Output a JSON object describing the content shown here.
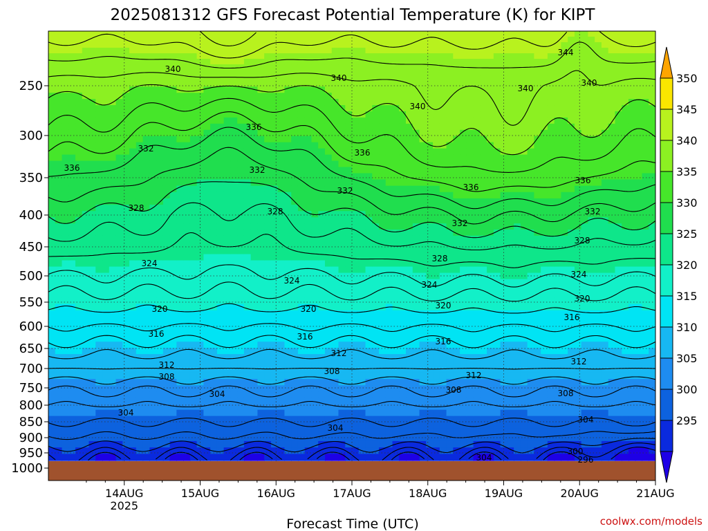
{
  "chart_data": {
    "type": "heatmap",
    "title": "2025081312 GFS Forecast Potential Temperature (K) for KIPT",
    "xlabel": "Forecast Time (UTC)",
    "ylabel": "",
    "credit": "coolwx.com/models",
    "x_tick_labels": [
      "14AUG",
      "15AUG",
      "16AUG",
      "17AUG",
      "18AUG",
      "19AUG",
      "20AUG",
      "21AUG"
    ],
    "x_tick_year": "2025",
    "xlim_hours": [
      -12,
      180
    ],
    "y_scale": "pressure (log), inverted",
    "y_tick_labels": [
      "250",
      "300",
      "350",
      "400",
      "450",
      "500",
      "550",
      "600",
      "650",
      "700",
      "750",
      "800",
      "850",
      "900",
      "950",
      "1000"
    ],
    "ylim_hpa": [
      200,
      1000
    ],
    "surface_pressure_hpa": 970,
    "colorbar": {
      "labels": [
        "295",
        "300",
        "305",
        "310",
        "315",
        "320",
        "325",
        "330",
        "335",
        "340",
        "345",
        "350"
      ],
      "levels": [
        290,
        295,
        300,
        305,
        310,
        315,
        320,
        325,
        330,
        335,
        340,
        345,
        350,
        355
      ],
      "colors": [
        "#1e00e6",
        "#0a2ade",
        "#0d62de",
        "#1e8cf0",
        "#17b8f2",
        "#00e4f4",
        "#12f0c8",
        "#0ee68a",
        "#20de4e",
        "#46e62a",
        "#8cf022",
        "#b8f21e",
        "#fae600",
        "#ffa500"
      ]
    },
    "contour_interval_k": 2,
    "contour_labels": [
      {
        "text": "340"
      },
      {
        "text": "340"
      },
      {
        "text": "344"
      },
      {
        "text": "340"
      },
      {
        "text": "340"
      },
      {
        "text": "340"
      },
      {
        "text": "336"
      },
      {
        "text": "336"
      },
      {
        "text": "336"
      },
      {
        "text": "336"
      },
      {
        "text": "336"
      },
      {
        "text": "332"
      },
      {
        "text": "332"
      },
      {
        "text": "332"
      },
      {
        "text": "332"
      },
      {
        "text": "332"
      },
      {
        "text": "328"
      },
      {
        "text": "328"
      },
      {
        "text": "328"
      },
      {
        "text": "328"
      },
      {
        "text": "324"
      },
      {
        "text": "324"
      },
      {
        "text": "324"
      },
      {
        "text": "324"
      },
      {
        "text": "320"
      },
      {
        "text": "320"
      },
      {
        "text": "320"
      },
      {
        "text": "320"
      },
      {
        "text": "316"
      },
      {
        "text": "316"
      },
      {
        "text": "316"
      },
      {
        "text": "316"
      },
      {
        "text": "312"
      },
      {
        "text": "312"
      },
      {
        "text": "312"
      },
      {
        "text": "312"
      },
      {
        "text": "308"
      },
      {
        "text": "308"
      },
      {
        "text": "308"
      },
      {
        "text": "308"
      },
      {
        "text": "304"
      },
      {
        "text": "304"
      },
      {
        "text": "304"
      },
      {
        "text": "304"
      },
      {
        "text": "304"
      },
      {
        "text": "300"
      },
      {
        "text": "296"
      }
    ]
  }
}
